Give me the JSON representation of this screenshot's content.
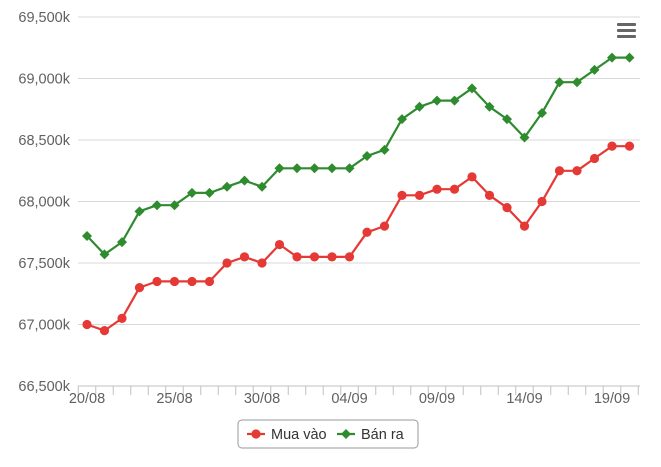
{
  "chart_data": {
    "type": "line",
    "x_tick_labels": [
      "20/08",
      "25/08",
      "30/08",
      "04/09",
      "09/09",
      "14/09",
      "19/09"
    ],
    "x_tick_index": [
      0,
      5,
      10,
      15,
      20,
      25,
      30
    ],
    "y_tick_labels": [
      "66,500k",
      "67,000k",
      "67,500k",
      "68,000k",
      "68,500k",
      "69,000k",
      "69,500k"
    ],
    "y_ticks": [
      66500,
      67000,
      67500,
      68000,
      68500,
      69000,
      69500
    ],
    "ylim": [
      66500,
      69500
    ],
    "grid": true,
    "legend_position": "bottom-center",
    "series": [
      {
        "name": "Mua vào",
        "color": "#e53935",
        "marker": "circle",
        "values": [
          67000,
          66950,
          67050,
          67300,
          67350,
          67350,
          67350,
          67350,
          67500,
          67550,
          67500,
          67650,
          67550,
          67550,
          67550,
          67550,
          67750,
          67800,
          68050,
          68050,
          68100,
          68100,
          68200,
          68050,
          67950,
          67800,
          68000,
          68250,
          68250,
          68350,
          68450,
          68450
        ]
      },
      {
        "name": "Bán ra",
        "color": "#2e8b2e",
        "marker": "diamond",
        "values": [
          67720,
          67570,
          67670,
          67920,
          67970,
          67970,
          68070,
          68070,
          68120,
          68170,
          68120,
          68270,
          68270,
          68270,
          68270,
          68270,
          68370,
          68420,
          68670,
          68770,
          68820,
          68820,
          68920,
          68770,
          68670,
          68520,
          68720,
          68970,
          68970,
          69070,
          69170,
          69170
        ]
      }
    ]
  },
  "menu": {
    "icon": "hamburger-menu-icon"
  }
}
